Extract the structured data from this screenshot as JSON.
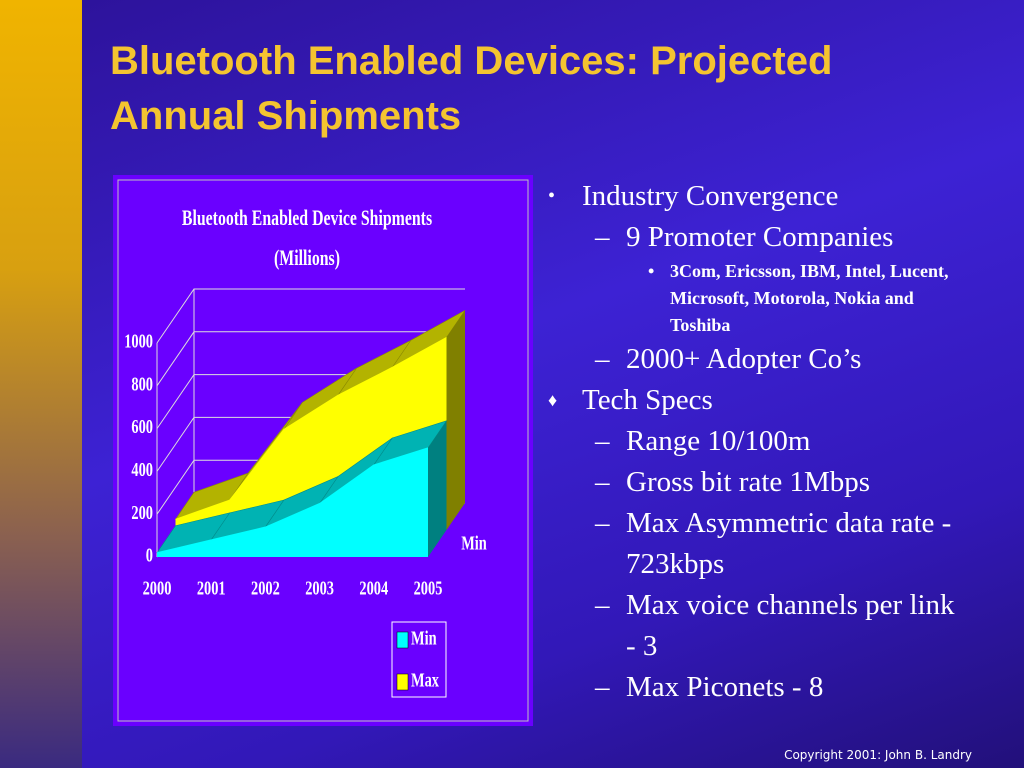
{
  "slide": {
    "title": "Bluetooth Enabled Devices: Projected Annual Shipments",
    "bullets": [
      {
        "text": "Industry Convergence",
        "items": [
          {
            "text": "9 Promoter Companies",
            "items": [
              {
                "text": "3Com, Ericsson, IBM, Intel, Lucent, Microsoft, Motorola, Nokia and Toshiba"
              }
            ]
          },
          {
            "text": "2000+ Adopter Co’s"
          }
        ]
      },
      {
        "text": "Tech Specs",
        "items": [
          {
            "text": "Range 10/100m"
          },
          {
            "text": "Gross bit rate 1Mbps"
          },
          {
            "text": "Max Asymmetric data rate - 723kbps"
          },
          {
            "text": "Max voice channels per link - 3"
          },
          {
            "text": "Max Piconets - 8"
          }
        ]
      }
    ]
  },
  "footer": "Copyright 2001: John B. Landry",
  "chart_data": {
    "type": "area3d",
    "title": "Bluetooth Enabled Device Shipments",
    "subtitle": "(Millions)",
    "categories": [
      "2000",
      "2001",
      "2002",
      "2003",
      "2004",
      "2005"
    ],
    "series": [
      {
        "name": "Min",
        "color": "#00ffff",
        "values": [
          20,
          80,
          140,
          250,
          430,
          510
        ]
      },
      {
        "name": "Max",
        "color": "#ffff00",
        "values": [
          50,
          140,
          470,
          630,
          760,
          900
        ]
      }
    ],
    "ylim": [
      0,
      1000
    ],
    "yticks": [
      0,
      200,
      400,
      600,
      800,
      1000
    ],
    "grid": true
  }
}
